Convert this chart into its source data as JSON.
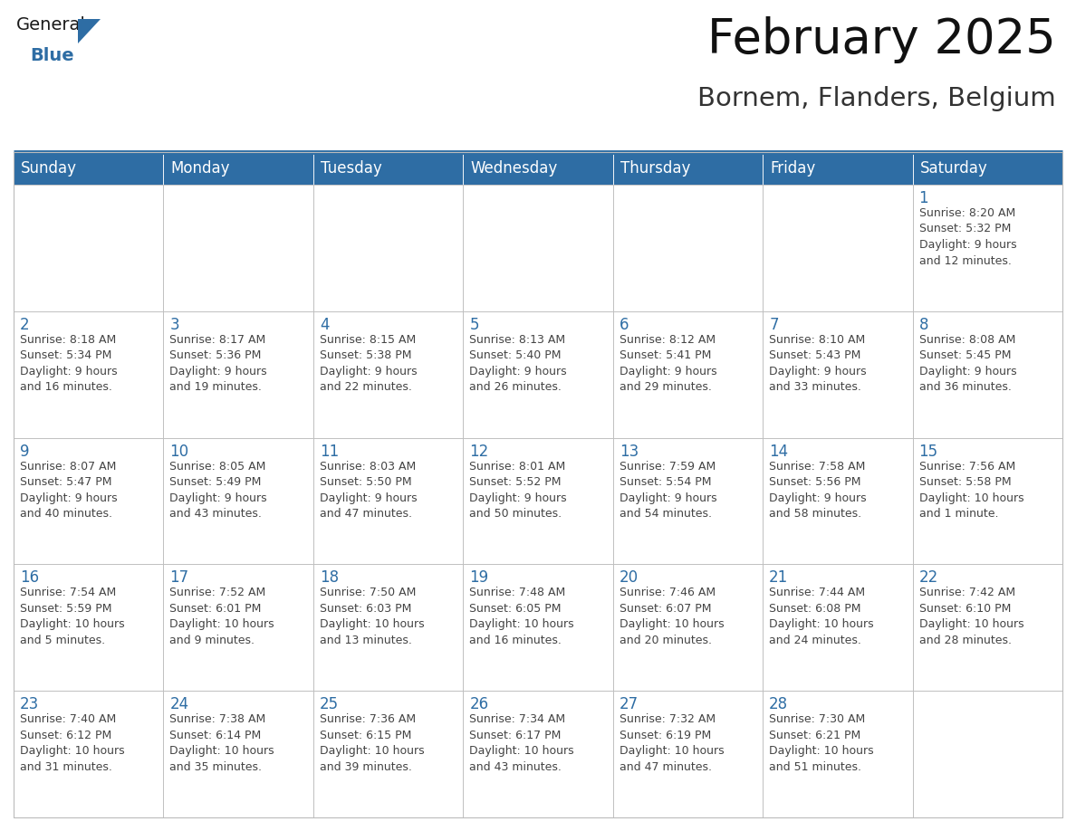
{
  "title": "February 2025",
  "subtitle": "Bornem, Flanders, Belgium",
  "header_bg": "#2E6DA4",
  "header_text_color": "#FFFFFF",
  "cell_bg": "#FFFFFF",
  "day_number_color": "#2E6DA4",
  "cell_text_color": "#444444",
  "grid_line_color": "#BBBBBB",
  "days_of_week": [
    "Sunday",
    "Monday",
    "Tuesday",
    "Wednesday",
    "Thursday",
    "Friday",
    "Saturday"
  ],
  "weeks": [
    [
      {
        "day": "",
        "text": ""
      },
      {
        "day": "",
        "text": ""
      },
      {
        "day": "",
        "text": ""
      },
      {
        "day": "",
        "text": ""
      },
      {
        "day": "",
        "text": ""
      },
      {
        "day": "",
        "text": ""
      },
      {
        "day": "1",
        "text": "Sunrise: 8:20 AM\nSunset: 5:32 PM\nDaylight: 9 hours\nand 12 minutes."
      }
    ],
    [
      {
        "day": "2",
        "text": "Sunrise: 8:18 AM\nSunset: 5:34 PM\nDaylight: 9 hours\nand 16 minutes."
      },
      {
        "day": "3",
        "text": "Sunrise: 8:17 AM\nSunset: 5:36 PM\nDaylight: 9 hours\nand 19 minutes."
      },
      {
        "day": "4",
        "text": "Sunrise: 8:15 AM\nSunset: 5:38 PM\nDaylight: 9 hours\nand 22 minutes."
      },
      {
        "day": "5",
        "text": "Sunrise: 8:13 AM\nSunset: 5:40 PM\nDaylight: 9 hours\nand 26 minutes."
      },
      {
        "day": "6",
        "text": "Sunrise: 8:12 AM\nSunset: 5:41 PM\nDaylight: 9 hours\nand 29 minutes."
      },
      {
        "day": "7",
        "text": "Sunrise: 8:10 AM\nSunset: 5:43 PM\nDaylight: 9 hours\nand 33 minutes."
      },
      {
        "day": "8",
        "text": "Sunrise: 8:08 AM\nSunset: 5:45 PM\nDaylight: 9 hours\nand 36 minutes."
      }
    ],
    [
      {
        "day": "9",
        "text": "Sunrise: 8:07 AM\nSunset: 5:47 PM\nDaylight: 9 hours\nand 40 minutes."
      },
      {
        "day": "10",
        "text": "Sunrise: 8:05 AM\nSunset: 5:49 PM\nDaylight: 9 hours\nand 43 minutes."
      },
      {
        "day": "11",
        "text": "Sunrise: 8:03 AM\nSunset: 5:50 PM\nDaylight: 9 hours\nand 47 minutes."
      },
      {
        "day": "12",
        "text": "Sunrise: 8:01 AM\nSunset: 5:52 PM\nDaylight: 9 hours\nand 50 minutes."
      },
      {
        "day": "13",
        "text": "Sunrise: 7:59 AM\nSunset: 5:54 PM\nDaylight: 9 hours\nand 54 minutes."
      },
      {
        "day": "14",
        "text": "Sunrise: 7:58 AM\nSunset: 5:56 PM\nDaylight: 9 hours\nand 58 minutes."
      },
      {
        "day": "15",
        "text": "Sunrise: 7:56 AM\nSunset: 5:58 PM\nDaylight: 10 hours\nand 1 minute."
      }
    ],
    [
      {
        "day": "16",
        "text": "Sunrise: 7:54 AM\nSunset: 5:59 PM\nDaylight: 10 hours\nand 5 minutes."
      },
      {
        "day": "17",
        "text": "Sunrise: 7:52 AM\nSunset: 6:01 PM\nDaylight: 10 hours\nand 9 minutes."
      },
      {
        "day": "18",
        "text": "Sunrise: 7:50 AM\nSunset: 6:03 PM\nDaylight: 10 hours\nand 13 minutes."
      },
      {
        "day": "19",
        "text": "Sunrise: 7:48 AM\nSunset: 6:05 PM\nDaylight: 10 hours\nand 16 minutes."
      },
      {
        "day": "20",
        "text": "Sunrise: 7:46 AM\nSunset: 6:07 PM\nDaylight: 10 hours\nand 20 minutes."
      },
      {
        "day": "21",
        "text": "Sunrise: 7:44 AM\nSunset: 6:08 PM\nDaylight: 10 hours\nand 24 minutes."
      },
      {
        "day": "22",
        "text": "Sunrise: 7:42 AM\nSunset: 6:10 PM\nDaylight: 10 hours\nand 28 minutes."
      }
    ],
    [
      {
        "day": "23",
        "text": "Sunrise: 7:40 AM\nSunset: 6:12 PM\nDaylight: 10 hours\nand 31 minutes."
      },
      {
        "day": "24",
        "text": "Sunrise: 7:38 AM\nSunset: 6:14 PM\nDaylight: 10 hours\nand 35 minutes."
      },
      {
        "day": "25",
        "text": "Sunrise: 7:36 AM\nSunset: 6:15 PM\nDaylight: 10 hours\nand 39 minutes."
      },
      {
        "day": "26",
        "text": "Sunrise: 7:34 AM\nSunset: 6:17 PM\nDaylight: 10 hours\nand 43 minutes."
      },
      {
        "day": "27",
        "text": "Sunrise: 7:32 AM\nSunset: 6:19 PM\nDaylight: 10 hours\nand 47 minutes."
      },
      {
        "day": "28",
        "text": "Sunrise: 7:30 AM\nSunset: 6:21 PM\nDaylight: 10 hours\nand 51 minutes."
      },
      {
        "day": "",
        "text": ""
      }
    ]
  ],
  "logo_general_color": "#1a1a1a",
  "logo_blue_color": "#2E6DA4",
  "title_fontsize": 38,
  "subtitle_fontsize": 21,
  "header_fontsize": 12,
  "day_num_fontsize": 12,
  "cell_text_fontsize": 9
}
